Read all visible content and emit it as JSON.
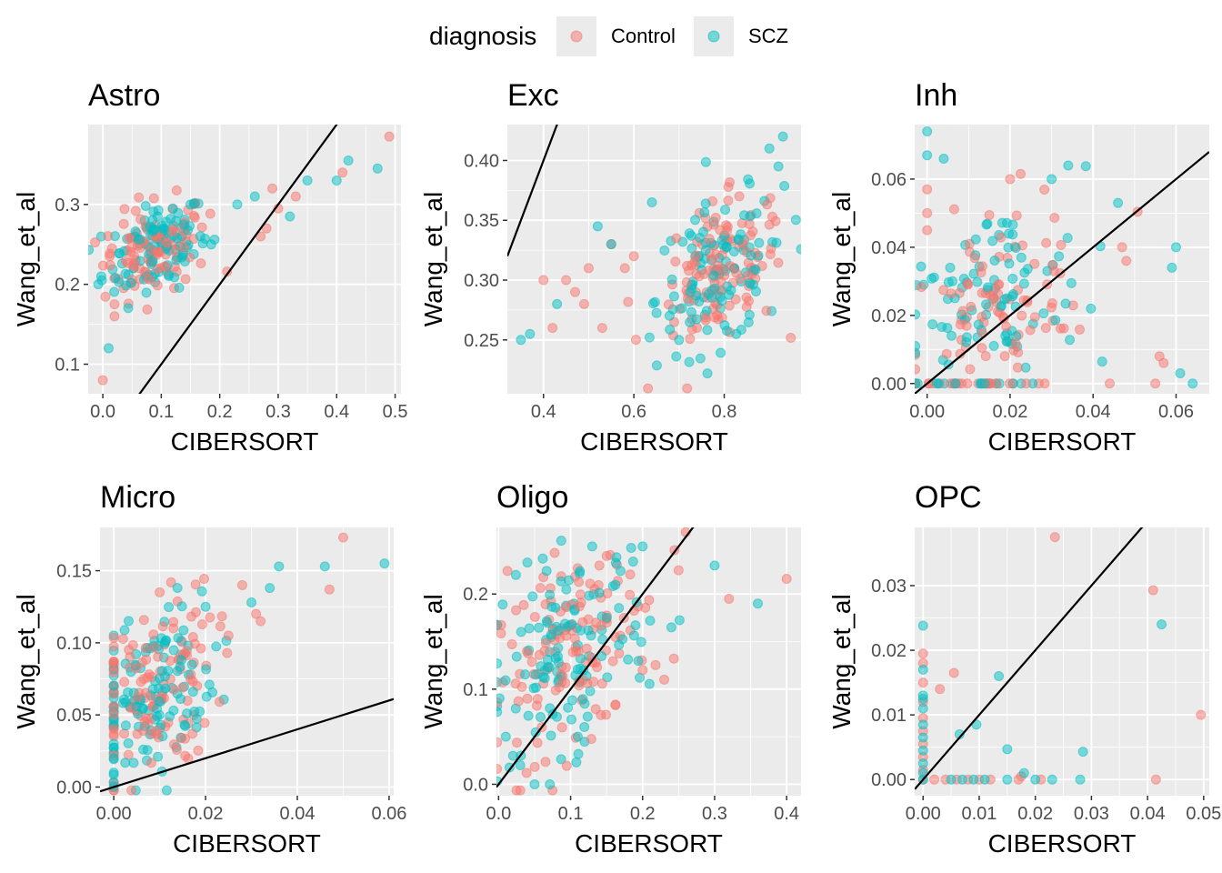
{
  "legend": {
    "title": "diagnosis",
    "entries": [
      {
        "label": "Control",
        "color": "#F8766D"
      },
      {
        "label": "SCZ",
        "color": "#00BFC4"
      }
    ]
  },
  "chart_data": [
    {
      "type": "scatter",
      "title": "Astro",
      "xlabel": "CIBERSORT",
      "ylabel": "Wang_et_al",
      "xlim": [
        -0.025,
        0.51
      ],
      "ylim": [
        0.063,
        0.4
      ],
      "xticks": [
        "0.0",
        "0.1",
        "0.2",
        "0.3",
        "0.4",
        "0.5"
      ],
      "yticks": [
        "0.1",
        "0.2",
        "0.3"
      ],
      "xtick_values": [
        0,
        0.1,
        0.2,
        0.3,
        0.4,
        0.5
      ],
      "ytick_values": [
        0.1,
        0.2,
        0.3
      ],
      "identity_line": {
        "slope": 1,
        "intercept": 0
      },
      "center": [
        0.09,
        0.245
      ],
      "spread": [
        0.045,
        0.028
      ],
      "n": 220,
      "series": [
        {
          "name": "Control",
          "points": [
            [
              0.0,
              0.08
            ],
            [
              0.49,
              0.385
            ],
            [
              0.41,
              0.34
            ],
            [
              0.33,
              0.31
            ],
            [
              0.29,
              0.32
            ],
            [
              0.27,
              0.26
            ],
            [
              0.02,
              0.16
            ],
            [
              0.02,
              0.175
            ],
            [
              0.3,
              0.295
            ],
            [
              0.28,
              0.27
            ]
          ]
        },
        {
          "name": "SCZ",
          "points": [
            [
              0.01,
              0.12
            ],
            [
              0.42,
              0.355
            ],
            [
              0.47,
              0.345
            ],
            [
              0.4,
              0.33
            ],
            [
              0.35,
              0.33
            ],
            [
              0.32,
              0.285
            ],
            [
              0.23,
              0.3
            ],
            [
              0.26,
              0.31
            ],
            [
              0.15,
              0.3
            ],
            [
              0.12,
              0.295
            ]
          ]
        }
      ]
    },
    {
      "type": "scatter",
      "title": "Exc",
      "xlabel": "CIBERSORT",
      "ylabel": "Wang_et_al",
      "xlim": [
        0.32,
        0.97
      ],
      "ylim": [
        0.205,
        0.43
      ],
      "xticks": [
        "0.4",
        "0.6",
        "0.8"
      ],
      "yticks": [
        "0.25",
        "0.30",
        "0.35",
        "0.40"
      ],
      "xtick_values": [
        0.4,
        0.6,
        0.8
      ],
      "ytick_values": [
        0.25,
        0.3,
        0.35,
        0.4
      ],
      "identity_line": {
        "slope": 1,
        "intercept": 0
      },
      "center": [
        0.79,
        0.305
      ],
      "spread": [
        0.07,
        0.03
      ],
      "n": 240,
      "series": [
        {
          "name": "Control",
          "points": [
            [
              0.4,
              0.3
            ],
            [
              0.45,
              0.3
            ],
            [
              0.47,
              0.29
            ],
            [
              0.5,
              0.31
            ],
            [
              0.55,
              0.33
            ],
            [
              0.58,
              0.31
            ],
            [
              0.6,
              0.32
            ],
            [
              0.53,
              0.26
            ],
            [
              0.42,
              0.26
            ],
            [
              0.49,
              0.28
            ]
          ]
        },
        {
          "name": "SCZ",
          "points": [
            [
              0.35,
              0.25
            ],
            [
              0.37,
              0.255
            ],
            [
              0.43,
              0.28
            ],
            [
              0.52,
              0.345
            ],
            [
              0.55,
              0.33
            ],
            [
              0.64,
              0.365
            ],
            [
              0.9,
              0.41
            ],
            [
              0.93,
              0.42
            ],
            [
              0.92,
              0.395
            ],
            [
              0.7,
              0.25
            ]
          ]
        }
      ]
    },
    {
      "type": "scatter",
      "title": "Inh",
      "xlabel": "CIBERSORT",
      "ylabel": "Wang_et_al",
      "xlim": [
        -0.003,
        0.068
      ],
      "ylim": [
        -0.003,
        0.076
      ],
      "xticks": [
        "0.00",
        "0.02",
        "0.04",
        "0.06"
      ],
      "yticks": [
        "0.00",
        "0.02",
        "0.04",
        "0.06"
      ],
      "xtick_values": [
        0,
        0.02,
        0.04,
        0.06
      ],
      "ytick_values": [
        0,
        0.02,
        0.04,
        0.06
      ],
      "identity_line": {
        "slope": 1,
        "intercept": 0
      },
      "center": [
        0.016,
        0.02
      ],
      "spread": [
        0.011,
        0.016
      ],
      "n": 220,
      "series": [
        {
          "name": "Control",
          "points": [
            [
              0.0,
              0.057
            ],
            [
              0.02,
              0.06
            ],
            [
              0.047,
              0.04
            ],
            [
              0.048,
              0.036
            ],
            [
              0.056,
              0.008
            ],
            [
              0.057,
              0.006
            ],
            [
              0.055,
              0.0
            ],
            [
              0.044,
              0.0
            ],
            [
              0.0,
              0.05
            ],
            [
              0.0,
              0.045
            ]
          ]
        },
        {
          "name": "SCZ",
          "points": [
            [
              0.0,
              0.074
            ],
            [
              0.0,
              0.067
            ],
            [
              0.004,
              0.066
            ],
            [
              0.03,
              0.06
            ],
            [
              0.034,
              0.064
            ],
            [
              0.046,
              0.053
            ],
            [
              0.06,
              0.04
            ],
            [
              0.059,
              0.034
            ],
            [
              0.061,
              0.003
            ],
            [
              0.064,
              0.0
            ]
          ]
        }
      ]
    },
    {
      "type": "scatter",
      "title": "Micro",
      "xlabel": "CIBERSORT",
      "ylabel": "Wang_et_al",
      "xlim": [
        -0.003,
        0.061
      ],
      "ylim": [
        -0.006,
        0.18
      ],
      "xticks": [
        "0.00",
        "0.02",
        "0.04",
        "0.06"
      ],
      "yticks": [
        "0.00",
        "0.05",
        "0.10",
        "0.15"
      ],
      "xtick_values": [
        0,
        0.02,
        0.04,
        0.06
      ],
      "ytick_values": [
        0,
        0.05,
        0.1,
        0.15
      ],
      "identity_line": {
        "slope": 1,
        "intercept": 0
      },
      "center": [
        0.008,
        0.065
      ],
      "spread": [
        0.007,
        0.03
      ],
      "n": 260,
      "series": [
        {
          "name": "Control",
          "points": [
            [
              0.05,
              0.173
            ],
            [
              0.047,
              0.137
            ],
            [
              0.028,
              0.14
            ],
            [
              0.031,
              0.12
            ],
            [
              0.032,
              0.115
            ],
            [
              0.025,
              0.105
            ],
            [
              0.01,
              0.135
            ],
            [
              0.013,
              0.11
            ],
            [
              0.0,
              0.05
            ],
            [
              0.0,
              0.04
            ]
          ]
        },
        {
          "name": "SCZ",
          "points": [
            [
              0.059,
              0.155
            ],
            [
              0.046,
              0.153
            ],
            [
              0.036,
              0.153
            ],
            [
              0.034,
              0.138
            ],
            [
              0.03,
              0.128
            ],
            [
              0.02,
              0.125
            ],
            [
              0.0,
              0.01
            ],
            [
              0.0,
              0.02
            ],
            [
              0.0,
              0.03
            ],
            [
              0.0,
              0.0
            ]
          ]
        }
      ]
    },
    {
      "type": "scatter",
      "title": "Oligo",
      "xlabel": "CIBERSORT",
      "ylabel": "Wang_et_al",
      "xlim": [
        -0.003,
        0.42
      ],
      "ylim": [
        -0.012,
        0.27
      ],
      "xticks": [
        "0.0",
        "0.1",
        "0.2",
        "0.3",
        "0.4"
      ],
      "yticks": [
        "0.0",
        "0.1",
        "0.2"
      ],
      "xtick_values": [
        0,
        0.1,
        0.2,
        0.3,
        0.4
      ],
      "ytick_values": [
        0,
        0.1,
        0.2
      ],
      "identity_line": {
        "slope": 1,
        "intercept": 0
      },
      "center": [
        0.1,
        0.14
      ],
      "spread": [
        0.055,
        0.05
      ],
      "n": 260,
      "series": [
        {
          "name": "Control",
          "points": [
            [
              0.4,
              0.216
            ],
            [
              0.32,
              0.195
            ],
            [
              0.26,
              0.265
            ],
            [
              0.23,
              0.11
            ],
            [
              0.2,
              0.12
            ],
            [
              0.25,
              0.225
            ],
            [
              0.15,
              0.24
            ],
            [
              0.14,
              0.23
            ],
            [
              0.06,
              0.06
            ],
            [
              0.04,
              0.09
            ]
          ]
        },
        {
          "name": "SCZ",
          "points": [
            [
              0.36,
              0.19
            ],
            [
              0.3,
              0.23
            ],
            [
              0.24,
              0.165
            ],
            [
              0.2,
              0.25
            ],
            [
              0.13,
              0.25
            ],
            [
              0.11,
              0.05
            ],
            [
              0.05,
              0.0
            ],
            [
              0.03,
              0.02
            ],
            [
              0.02,
              0.03
            ],
            [
              0.01,
              0.05
            ]
          ]
        }
      ]
    },
    {
      "type": "scatter",
      "title": "OPC",
      "xlabel": "CIBERSORT",
      "ylabel": "Wang_et_al",
      "xlim": [
        -0.0015,
        0.051
      ],
      "ylim": [
        -0.0025,
        0.039
      ],
      "xticks": [
        "0.00",
        "0.01",
        "0.02",
        "0.03",
        "0.04",
        "0.05"
      ],
      "yticks": [
        "0.00",
        "0.01",
        "0.02",
        "0.03"
      ],
      "xtick_values": [
        0,
        0.01,
        0.02,
        0.03,
        0.04,
        0.05
      ],
      "ytick_values": [
        0,
        0.01,
        0.02,
        0.03
      ],
      "identity_line": {
        "slope": 1,
        "intercept": 0
      },
      "center": [
        0.0,
        0.0
      ],
      "spread": [
        0.0,
        0.0
      ],
      "n": 0,
      "series": [
        {
          "name": "Control",
          "points": [
            [
              0.0,
              0.0
            ],
            [
              0.0,
              0.0195
            ],
            [
              0.0,
              0.018
            ],
            [
              0.0,
              0.015
            ],
            [
              0.0,
              0.012
            ],
            [
              0.0,
              0.0095
            ],
            [
              0.0,
              0.0075
            ],
            [
              0.0,
              0.0055
            ],
            [
              0.0,
              0.0035
            ],
            [
              0.0,
              0.0015
            ],
            [
              0.003,
              0.014
            ],
            [
              0.0055,
              0.0165
            ],
            [
              0.0235,
              0.0375
            ],
            [
              0.041,
              0.0293
            ],
            [
              0.0415,
              0.0
            ],
            [
              0.0495,
              0.01
            ],
            [
              0.0175,
              0.0005
            ],
            [
              0.002,
              0.0
            ],
            [
              0.004,
              0.0
            ],
            [
              0.006,
              0.0
            ],
            [
              0.008,
              0.0
            ],
            [
              0.01,
              0.0
            ],
            [
              0.012,
              0.0
            ],
            [
              0.017,
              0.0
            ],
            [
              0.021,
              0.0
            ]
          ]
        },
        {
          "name": "SCZ",
          "points": [
            [
              0.0,
              0.0
            ],
            [
              0.0,
              0.0238
            ],
            [
              0.0,
              0.017
            ],
            [
              0.0,
              0.013
            ],
            [
              0.0,
              0.0125
            ],
            [
              0.0,
              0.011
            ],
            [
              0.0,
              0.0085
            ],
            [
              0.0,
              0.0065
            ],
            [
              0.0,
              0.0045
            ],
            [
              0.0,
              0.0025
            ],
            [
              0.0,
              0.001
            ],
            [
              0.0095,
              0.0085
            ],
            [
              0.0135,
              0.016
            ],
            [
              0.015,
              0.0047
            ],
            [
              0.0285,
              0.0043
            ],
            [
              0.0425,
              0.024
            ],
            [
              0.0065,
              0.007
            ],
            [
              0.018,
              0.001
            ],
            [
              0.005,
              0.0
            ],
            [
              0.007,
              0.0
            ],
            [
              0.009,
              0.0
            ],
            [
              0.011,
              0.0
            ],
            [
              0.015,
              0.0
            ],
            [
              0.02,
              0.0
            ],
            [
              0.023,
              0.0
            ],
            [
              0.028,
              0.0
            ]
          ]
        }
      ]
    }
  ]
}
